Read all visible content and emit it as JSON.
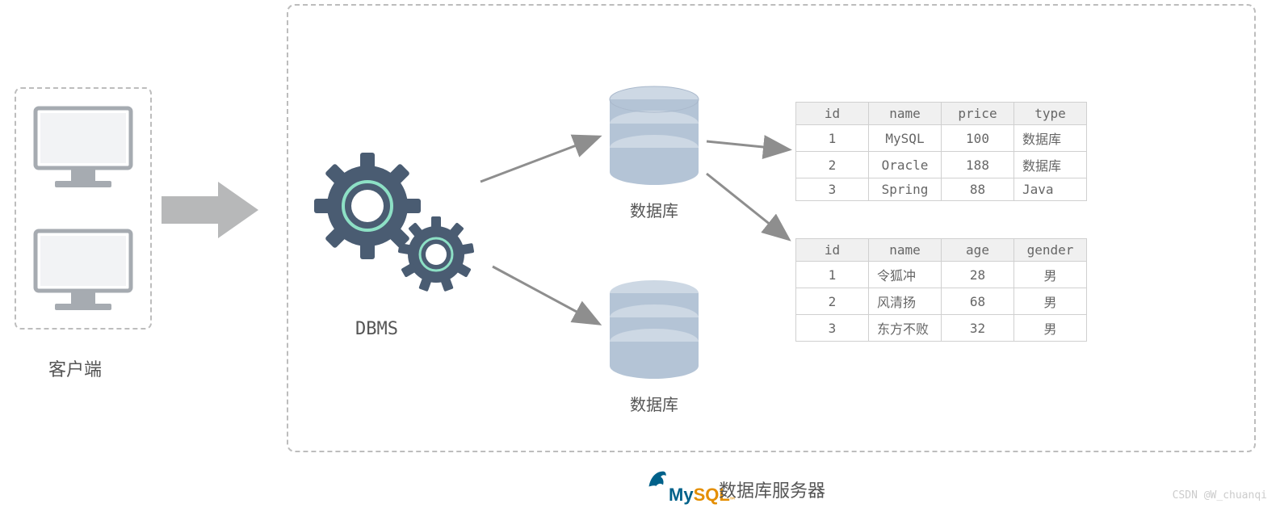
{
  "colors": {
    "border_dashed": "#bdbdbd",
    "arrow": "#8e8e8e",
    "gear": "#4a5c72",
    "gear_ring": "#8de0c5",
    "cylinder_top": "#cdd8e4",
    "cylinder_side": "#b4c4d6",
    "monitor": "#a6abb1",
    "text": "#555555",
    "table_border": "#d0d0d0",
    "table_header_bg": "#f0f0f0",
    "mysql_blue": "#00618a",
    "mysql_orange": "#e48e00"
  },
  "client": {
    "label": "客户端"
  },
  "dbms": {
    "label": "DBMS"
  },
  "db": {
    "label": "数据库"
  },
  "server": {
    "label": "数据库服务器"
  },
  "mysql": {
    "part1": "My",
    "part2": "SQL",
    "tm": "™"
  },
  "table1": {
    "columns": [
      "id",
      "name",
      "price",
      "type"
    ],
    "rows": [
      [
        "1",
        "MySQL",
        "100",
        "数据库"
      ],
      [
        "2",
        "Oracle",
        "188",
        "数据库"
      ],
      [
        "3",
        "Spring",
        "88",
        "Java"
      ]
    ],
    "left_align_cols": [
      3
    ]
  },
  "table2": {
    "columns": [
      "id",
      "name",
      "age",
      "gender"
    ],
    "rows": [
      [
        "1",
        "令狐冲",
        "28",
        "男"
      ],
      [
        "2",
        "风清扬",
        "68",
        "男"
      ],
      [
        "3",
        "东方不败",
        "32",
        "男"
      ]
    ],
    "left_align_cols": [
      1
    ]
  },
  "watermark": "CSDN @W_chuanqi"
}
